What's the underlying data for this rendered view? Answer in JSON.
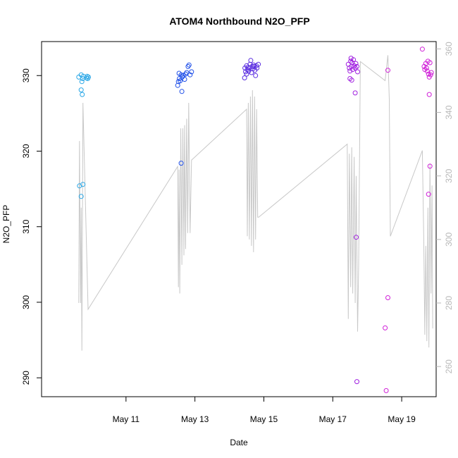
{
  "chart_data": {
    "type": "scatter",
    "title": "ATOM4 Northbound N2O_PFP",
    "xlabel": "Date",
    "ylabel": "N2O_PFP",
    "x_ticks": [
      {
        "value": 11,
        "label": "May 11"
      },
      {
        "value": 13,
        "label": "May 13"
      },
      {
        "value": 15,
        "label": "May 15"
      },
      {
        "value": 17,
        "label": "May 17"
      },
      {
        "value": 19,
        "label": "May 19"
      }
    ],
    "xlim": [
      8.55,
      20.0
    ],
    "ylim": [
      287.5,
      334.5
    ],
    "y_ticks": [
      290,
      300,
      310,
      320,
      330
    ],
    "y2_ticks": [
      260,
      280,
      300,
      320,
      340,
      360
    ],
    "y2lim": [
      250.5,
      362.3
    ],
    "y2_color": "#b8b8b8",
    "grid": false,
    "series": [
      {
        "color": "#2aa7e6",
        "points": [
          [
            9.63,
            329.8
          ],
          [
            9.7,
            330.1
          ],
          [
            9.72,
            329.2
          ],
          [
            9.74,
            329.6
          ],
          [
            9.76,
            329.9
          ],
          [
            9.85,
            329.7
          ],
          [
            9.87,
            329.9
          ],
          [
            9.89,
            329.6
          ],
          [
            9.91,
            329.8
          ],
          [
            9.7,
            328.1
          ],
          [
            9.73,
            327.5
          ],
          [
            9.65,
            315.4
          ],
          [
            9.75,
            315.6
          ],
          [
            9.7,
            314.0
          ]
        ]
      },
      {
        "color": "#2050e8",
        "points": [
          [
            12.5,
            328.7
          ],
          [
            12.52,
            329.2
          ],
          [
            12.55,
            329.6
          ],
          [
            12.57,
            329.3
          ],
          [
            12.6,
            330.1
          ],
          [
            12.63,
            329.8
          ],
          [
            12.66,
            330.0
          ],
          [
            12.7,
            329.5
          ],
          [
            12.73,
            330.2
          ],
          [
            12.76,
            330.4
          ],
          [
            12.8,
            331.2
          ],
          [
            12.83,
            331.4
          ],
          [
            12.86,
            330.1
          ],
          [
            12.9,
            330.5
          ],
          [
            12.54,
            330.3
          ],
          [
            12.62,
            327.9
          ],
          [
            12.6,
            318.4
          ]
        ]
      },
      {
        "color": "#5a2de0",
        "points": [
          [
            14.45,
            331.0
          ],
          [
            14.47,
            330.5
          ],
          [
            14.5,
            331.3
          ],
          [
            14.52,
            330.8
          ],
          [
            14.54,
            331.1
          ],
          [
            14.56,
            330.6
          ],
          [
            14.58,
            331.0
          ],
          [
            14.6,
            331.5
          ],
          [
            14.62,
            332.0
          ],
          [
            14.64,
            330.4
          ],
          [
            14.66,
            331.2
          ],
          [
            14.68,
            330.9
          ],
          [
            14.7,
            331.4
          ],
          [
            14.72,
            331.2
          ],
          [
            14.74,
            330.7
          ],
          [
            14.76,
            330.0
          ],
          [
            14.78,
            331.3
          ],
          [
            14.8,
            331.0
          ],
          [
            14.84,
            331.5
          ],
          [
            14.5,
            330.2
          ],
          [
            14.44,
            329.7
          ]
        ]
      },
      {
        "color": "#a020e0",
        "points": [
          [
            17.45,
            331.5
          ],
          [
            17.48,
            331.0
          ],
          [
            17.5,
            330.6
          ],
          [
            17.52,
            331.9
          ],
          [
            17.54,
            331.2
          ],
          [
            17.56,
            331.7
          ],
          [
            17.58,
            330.8
          ],
          [
            17.6,
            332.1
          ],
          [
            17.62,
            331.3
          ],
          [
            17.65,
            331.0
          ],
          [
            17.67,
            331.6
          ],
          [
            17.7,
            331.2
          ],
          [
            17.72,
            330.5
          ],
          [
            17.5,
            329.6
          ],
          [
            17.55,
            329.4
          ],
          [
            17.53,
            332.3
          ],
          [
            17.65,
            327.7
          ],
          [
            17.68,
            308.6
          ],
          [
            17.7,
            289.5
          ]
        ]
      },
      {
        "color": "#d020d8",
        "points": [
          [
            19.6,
            333.5
          ],
          [
            19.65,
            331.2
          ],
          [
            19.67,
            330.8
          ],
          [
            19.7,
            331.6
          ],
          [
            19.72,
            331.0
          ],
          [
            19.74,
            330.6
          ],
          [
            19.76,
            331.9
          ],
          [
            19.78,
            330.2
          ],
          [
            19.8,
            329.8
          ],
          [
            19.82,
            331.7
          ],
          [
            19.84,
            330.1
          ],
          [
            19.86,
            330.4
          ],
          [
            19.8,
            327.5
          ],
          [
            19.82,
            318.0
          ],
          [
            19.78,
            314.3
          ],
          [
            18.6,
            330.7
          ],
          [
            18.6,
            300.6
          ],
          [
            18.52,
            296.6
          ],
          [
            18.55,
            288.3
          ]
        ]
      }
    ],
    "secondary_series": {
      "color": "#c8c8c8",
      "points": [
        [
          9.63,
          280
        ],
        [
          9.65,
          331
        ],
        [
          9.68,
          280
        ],
        [
          9.7,
          310
        ],
        [
          9.72,
          265
        ],
        [
          9.75,
          343
        ],
        [
          9.9,
          278
        ],
        [
          12.5,
          323
        ],
        [
          12.52,
          285
        ],
        [
          12.54,
          322
        ],
        [
          12.56,
          283
        ],
        [
          12.59,
          335
        ],
        [
          12.62,
          292
        ],
        [
          12.65,
          335
        ],
        [
          12.68,
          295
        ],
        [
          12.7,
          336
        ],
        [
          12.73,
          297
        ],
        [
          12.76,
          338
        ],
        [
          12.79,
          302
        ],
        [
          12.82,
          343
        ],
        [
          12.86,
          302
        ],
        [
          12.9,
          325
        ],
        [
          14.5,
          341
        ],
        [
          14.52,
          301
        ],
        [
          14.55,
          343
        ],
        [
          14.58,
          300
        ],
        [
          14.61,
          345
        ],
        [
          14.64,
          298
        ],
        [
          14.67,
          347
        ],
        [
          14.7,
          296
        ],
        [
          14.73,
          345
        ],
        [
          14.76,
          300
        ],
        [
          14.79,
          341
        ],
        [
          14.82,
          307
        ],
        [
          14.85,
          307
        ],
        [
          17.42,
          330
        ],
        [
          17.45,
          275
        ],
        [
          17.48,
          327
        ],
        [
          17.52,
          285
        ],
        [
          17.55,
          329
        ],
        [
          17.58,
          283
        ],
        [
          17.62,
          326
        ],
        [
          17.65,
          280
        ],
        [
          17.68,
          320
        ],
        [
          17.72,
          271
        ],
        [
          17.75,
          292
        ],
        [
          17.8,
          356
        ],
        [
          18.52,
          350
        ],
        [
          18.6,
          358
        ],
        [
          18.64,
          344
        ],
        [
          18.67,
          301
        ],
        [
          19.6,
          328
        ],
        [
          19.64,
          300
        ],
        [
          19.67,
          270
        ],
        [
          19.7,
          298
        ],
        [
          19.73,
          268
        ],
        [
          19.76,
          310
        ],
        [
          19.79,
          266
        ],
        [
          19.82,
          324
        ],
        [
          19.85,
          283
        ],
        [
          19.88,
          317
        ],
        [
          19.9,
          272
        ]
      ]
    }
  }
}
